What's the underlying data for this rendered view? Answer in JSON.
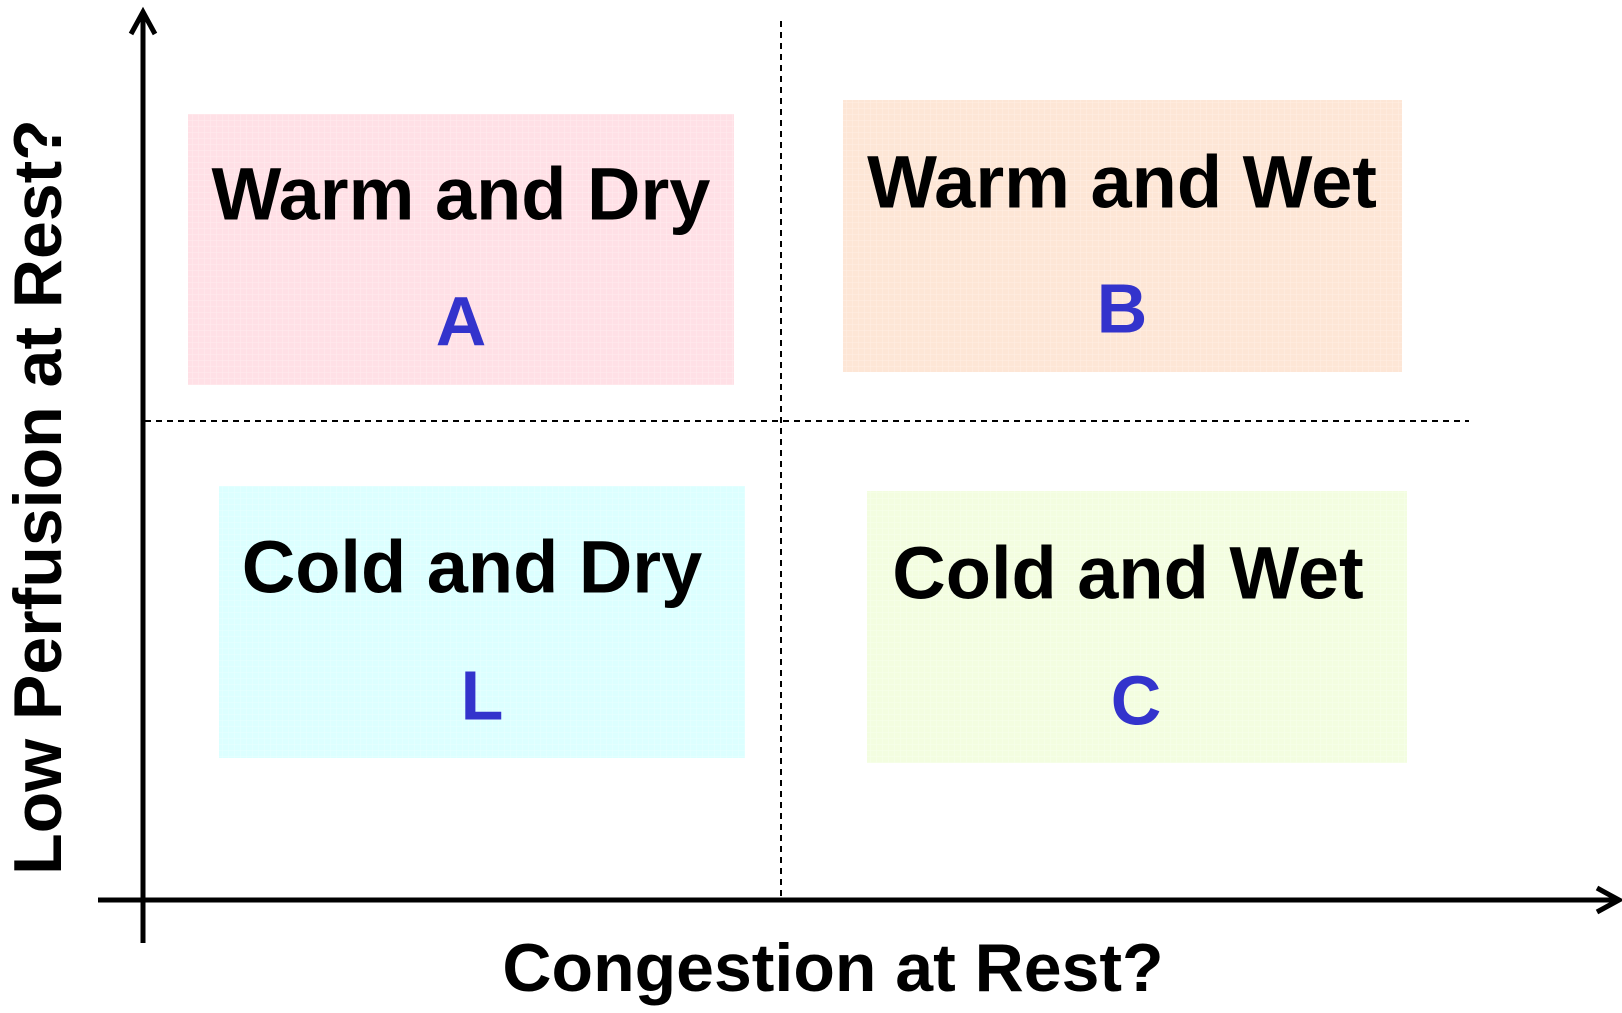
{
  "axes": {
    "x_label": "Congestion at Rest?",
    "y_label": "Low Perfusion at Rest?"
  },
  "quadrants": [
    {
      "title": "Warm and Dry",
      "letter": "A"
    },
    {
      "title": "Warm and Wet",
      "letter": "B"
    },
    {
      "title": "Cold and Dry",
      "letter": "L"
    },
    {
      "title": "Cold and Wet",
      "letter": "C"
    }
  ]
}
